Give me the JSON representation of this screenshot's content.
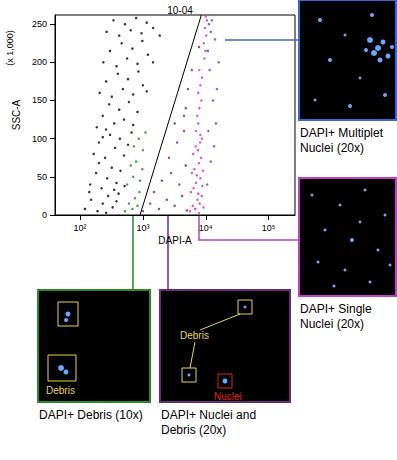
{
  "chart_data": {
    "type": "scatter",
    "title": "10-04",
    "xlabel": "DAPI-A",
    "ylabel": "SSC-A",
    "annotations": [
      {
        "text": "(x 1,000)"
      }
    ],
    "log": "x",
    "grid": false,
    "xlim": [
      40,
      262144
    ],
    "xticks": [
      {
        "value": 100,
        "label": "10²"
      },
      {
        "value": 1000,
        "label": "10³"
      },
      {
        "value": 10000,
        "label": "10⁴"
      },
      {
        "value": 100000,
        "label": "10⁵"
      }
    ],
    "ylim": [
      0,
      262
    ],
    "yticks": [
      0,
      50,
      100,
      150,
      200,
      250
    ],
    "series": [
      {
        "color": "#000000",
        "values": [
          [
            120,
            8
          ],
          [
            150,
            20
          ],
          [
            190,
            5
          ],
          [
            230,
            15
          ],
          [
            280,
            25
          ],
          [
            330,
            10
          ],
          [
            380,
            18
          ],
          [
            410,
            28
          ],
          [
            140,
            30
          ],
          [
            260,
            3
          ],
          [
            145,
            40
          ],
          [
            180,
            55
          ],
          [
            220,
            35
          ],
          [
            270,
            48
          ],
          [
            320,
            62
          ],
          [
            380,
            42
          ],
          [
            440,
            58
          ],
          [
            510,
            38
          ],
          [
            200,
            68
          ],
          [
            350,
            33
          ],
          [
            165,
            80
          ],
          [
            200,
            95
          ],
          [
            250,
            75
          ],
          [
            300,
            105
          ],
          [
            360,
            88
          ],
          [
            430,
            100
          ],
          [
            500,
            78
          ],
          [
            580,
            92
          ],
          [
            660,
            108
          ],
          [
            230,
            102
          ],
          [
            185,
            115
          ],
          [
            230,
            130
          ],
          [
            290,
            145
          ],
          [
            350,
            120
          ],
          [
            420,
            138
          ],
          [
            500,
            125
          ],
          [
            600,
            148
          ],
          [
            700,
            118
          ],
          [
            820,
            135
          ],
          [
            260,
            112
          ],
          [
            205,
            160
          ],
          [
            260,
            175
          ],
          [
            320,
            155
          ],
          [
            400,
            185
          ],
          [
            480,
            165
          ],
          [
            580,
            178
          ],
          [
            700,
            158
          ],
          [
            850,
            188
          ],
          [
            1000,
            170
          ],
          [
            1150,
            162
          ],
          [
            235,
            200
          ],
          [
            300,
            215
          ],
          [
            380,
            195
          ],
          [
            460,
            225
          ],
          [
            560,
            205
          ],
          [
            680,
            218
          ],
          [
            820,
            198
          ],
          [
            980,
            228
          ],
          [
            1200,
            210
          ],
          [
            1450,
            200
          ],
          [
            265,
            240
          ],
          [
            340,
            255
          ],
          [
            420,
            235
          ],
          [
            520,
            250
          ],
          [
            640,
            242
          ],
          [
            780,
            258
          ],
          [
            950,
            238
          ],
          [
            1150,
            252
          ],
          [
            1450,
            245
          ],
          [
            1850,
            235
          ]
        ]
      },
      {
        "color": "#1a8c1a",
        "values": [
          [
            520,
            5
          ],
          [
            600,
            15
          ],
          [
            680,
            8
          ],
          [
            750,
            22
          ],
          [
            820,
            12
          ],
          [
            880,
            30
          ],
          [
            560,
            40
          ],
          [
            700,
            50
          ],
          [
            900,
            45
          ],
          [
            640,
            65
          ],
          [
            780,
            70
          ],
          [
            980,
            60
          ],
          [
            720,
            90
          ],
          [
            860,
            100
          ],
          [
            1000,
            85
          ],
          [
            1100,
            108
          ]
        ]
      },
      {
        "color": "#7a1f7a",
        "values": [
          [
            1000,
            5
          ],
          [
            1300,
            15
          ],
          [
            1800,
            8
          ],
          [
            2400,
            20
          ],
          [
            3200,
            12
          ],
          [
            4200,
            25
          ],
          [
            5000,
            6
          ],
          [
            1500,
            30
          ],
          [
            2000,
            45
          ],
          [
            2800,
            55
          ],
          [
            3800,
            40
          ],
          [
            4800,
            65
          ],
          [
            2600,
            75
          ],
          [
            3500,
            95
          ],
          [
            4500,
            110
          ],
          [
            3200,
            120
          ],
          [
            4800,
            140
          ],
          [
            5200,
            165
          ],
          [
            4500,
            130
          ],
          [
            6000,
            190
          ],
          [
            7800,
            220
          ]
        ]
      },
      {
        "color": "#e020e0",
        "values": [
          [
            5600,
            5
          ],
          [
            6200,
            12
          ],
          [
            6800,
            8
          ],
          [
            7400,
            20
          ],
          [
            8000,
            15
          ],
          [
            8600,
            25
          ],
          [
            9200,
            10
          ],
          [
            5800,
            30
          ],
          [
            6400,
            35
          ],
          [
            7000,
            42
          ],
          [
            7600,
            28
          ],
          [
            8200,
            48
          ],
          [
            8800,
            38
          ],
          [
            6000,
            55
          ],
          [
            6600,
            60
          ],
          [
            7200,
            52
          ],
          [
            7800,
            68
          ],
          [
            8400,
            75
          ],
          [
            9000,
            58
          ],
          [
            6300,
            80
          ],
          [
            6900,
            90
          ],
          [
            7500,
            85
          ],
          [
            8100,
            95
          ],
          [
            8700,
            100
          ],
          [
            7000,
            110
          ],
          [
            7600,
            120
          ],
          [
            8200,
            105
          ],
          [
            7300,
            130
          ],
          [
            7900,
            140
          ],
          [
            8500,
            150
          ],
          [
            7600,
            160
          ],
          [
            8200,
            170
          ],
          [
            8700,
            180
          ],
          [
            7900,
            190
          ],
          [
            9500,
            205
          ],
          [
            9900,
            215
          ],
          [
            9300,
            225
          ],
          [
            10200,
            235
          ],
          [
            9700,
            245
          ],
          [
            10400,
            255
          ],
          [
            10000,
            260
          ]
        ]
      },
      {
        "color": "#3050e0",
        "values": [
          [
            10500,
            40
          ],
          [
            12000,
            70
          ],
          [
            11000,
            110
          ],
          [
            13000,
            150
          ],
          [
            11500,
            190
          ],
          [
            14000,
            230
          ],
          [
            12500,
            255
          ],
          [
            10800,
            215
          ],
          [
            15000,
            165
          ],
          [
            13500,
            90
          ],
          [
            12000,
            240
          ],
          [
            16000,
            200
          ],
          [
            11200,
            250
          ],
          [
            14500,
            120
          ]
        ]
      },
      {
        "type": "line",
        "color": "#000000",
        "values": [
          [
            900,
            0
          ],
          [
            8500,
            262
          ]
        ]
      }
    ]
  },
  "panels": [
    {
      "label": "DAPI+ Multiplet Nuclei (20x)",
      "color": "#3a66d6"
    },
    {
      "label": "DAPI+ Single Nuclei (20x)",
      "color": "#c040c8"
    },
    {
      "label": "DAPI+ Debris (10x)",
      "color": "#2a8a2a",
      "markers": [
        {
          "text": "Debris",
          "color": "#e8d84a"
        }
      ]
    },
    {
      "label": "DAPI+ Nuclei and Debris (20x)",
      "color": "#6a2a78",
      "markers": [
        {
          "text": "Debris",
          "color": "#e8d84a"
        },
        {
          "text": "Nuclei",
          "color": "#e02020"
        }
      ]
    }
  ]
}
